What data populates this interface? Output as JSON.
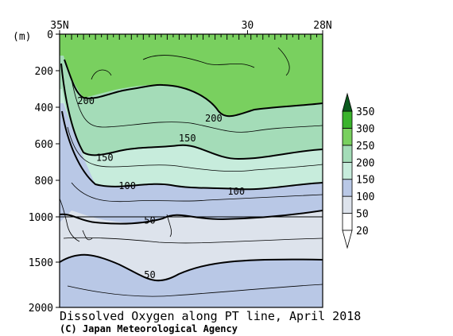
{
  "chart_data": {
    "type": "heatmap",
    "title": "Dissolved Oxygen along PT line, April 2018",
    "credit": "(C) Japan Meteorological Agency",
    "ylabel": "(m)",
    "x_axis": {
      "direction": "north-to-south",
      "ticks": [
        {
          "label": "35N",
          "lat": 35
        },
        {
          "label": "30",
          "lat": 30
        },
        {
          "label": "28N",
          "lat": 28
        }
      ],
      "range": [
        35,
        28
      ]
    },
    "y_axis": {
      "inverted": true,
      "range": [
        0,
        2000
      ],
      "break_at": 1000,
      "ticks": [
        {
          "label": "0",
          "depth": 0
        },
        {
          "label": "200",
          "depth": 200
        },
        {
          "label": "400",
          "depth": 400
        },
        {
          "label": "600",
          "depth": 600
        },
        {
          "label": "800",
          "depth": 800
        },
        {
          "label": "1000",
          "depth": 1000
        },
        {
          "label": "1500",
          "depth": 1500
        },
        {
          "label": "2000",
          "depth": 2000
        }
      ]
    },
    "colorbar": {
      "levels": [
        {
          "label": "20",
          "value": 20,
          "color": "#ffffff"
        },
        {
          "label": "50",
          "value": 50,
          "color": "#dde3ec"
        },
        {
          "label": "100",
          "value": 100,
          "color": "#b9c8e6"
        },
        {
          "label": "150",
          "value": 150,
          "color": "#c7ecdc"
        },
        {
          "label": "200",
          "value": 200,
          "color": "#a4dcb8"
        },
        {
          "label": "250",
          "value": 250,
          "color": "#79d05f"
        },
        {
          "label": "300",
          "value": 300,
          "color": "#3ab32c"
        },
        {
          "label": "350",
          "value": 350,
          "color": "#0a5a1e"
        }
      ]
    },
    "contours": [
      {
        "value": 200,
        "label": "200",
        "thick": true,
        "points": [
          [
            35.0,
            200
          ],
          [
            34.6,
            330
          ],
          [
            33.4,
            300
          ],
          [
            31.4,
            260
          ],
          [
            30.8,
            420
          ],
          [
            30.0,
            390
          ],
          [
            28.0,
            370
          ]
        ]
      },
      {
        "value": 150,
        "label": "150",
        "thick": true,
        "points": [
          [
            35.0,
            140
          ],
          [
            34.4,
            560
          ],
          [
            33.0,
            700
          ],
          [
            31.4,
            660
          ],
          [
            30.8,
            690
          ],
          [
            30.0,
            640
          ],
          [
            28.0,
            610
          ]
        ]
      },
      {
        "value": 100,
        "label": "100",
        "thick": true,
        "points": [
          [
            34.9,
            500
          ],
          [
            34.4,
            790
          ],
          [
            32.6,
            870
          ],
          [
            31.4,
            840
          ],
          [
            30.2,
            880
          ],
          [
            28.0,
            790
          ]
        ]
      },
      {
        "value": 50,
        "label": "50",
        "thick": true,
        "points": [
          [
            35.0,
            1140
          ],
          [
            34.4,
            1140
          ],
          [
            33.0,
            1080
          ],
          [
            32.0,
            1080
          ],
          [
            30.0,
            1050
          ],
          [
            28.0,
            980
          ]
        ]
      },
      {
        "value": 50,
        "label": "50",
        "thick": true,
        "points": [
          [
            35.0,
            1600
          ],
          [
            34.6,
            1460
          ],
          [
            33.6,
            1550
          ],
          [
            32.4,
            1660
          ],
          [
            31.2,
            1580
          ],
          [
            30.0,
            1530
          ],
          [
            28.0,
            1490
          ]
        ]
      }
    ]
  }
}
